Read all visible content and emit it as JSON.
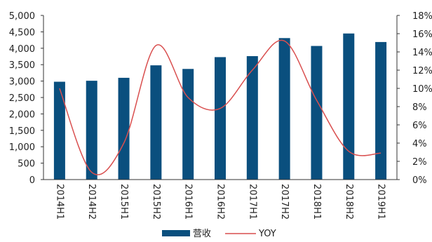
{
  "chart_data": {
    "type": "bar",
    "categories": [
      "2014H1",
      "2014H2",
      "2015H1",
      "2015H2",
      "2016H1",
      "2016H2",
      "2017H1",
      "2017H2",
      "2018H1",
      "2018H2",
      "2019H1"
    ],
    "series": [
      {
        "name": "营收",
        "type": "bar",
        "axis": "left",
        "color": "#0a4f7e",
        "values": [
          2980,
          3010,
          3100,
          3480,
          3370,
          3730,
          3760,
          4310,
          4070,
          4450,
          4190
        ]
      },
      {
        "name": "YOY",
        "type": "line",
        "axis": "right",
        "color": "#d94f4f",
        "values": [
          10.0,
          0.8,
          4.0,
          14.7,
          9.0,
          7.8,
          12.0,
          15.2,
          8.7,
          3.1,
          2.9
        ]
      }
    ],
    "y_left": {
      "ylim": [
        0,
        5000
      ],
      "ticks": [
        "0",
        "500",
        "1,000",
        "1,500",
        "2,000",
        "2,500",
        "3,000",
        "3,500",
        "4,000",
        "4,500",
        "5,000"
      ]
    },
    "y_right": {
      "ylim": [
        0,
        18
      ],
      "ticks": [
        "0%",
        "2%",
        "4%",
        "6%",
        "8%",
        "10%",
        "12%",
        "14%",
        "16%",
        "18%"
      ]
    },
    "grid": false,
    "legend_position": "bottom"
  }
}
